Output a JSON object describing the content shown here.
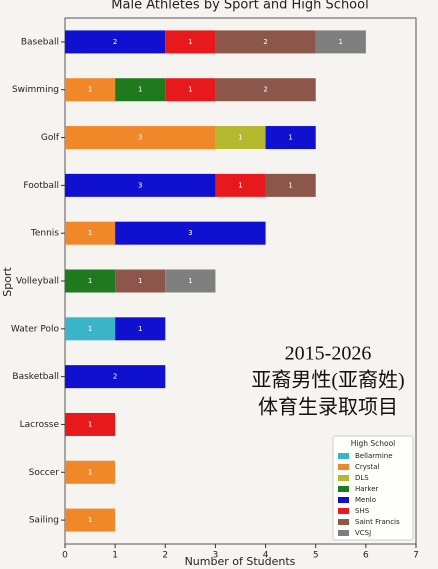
{
  "chart_data": {
    "type": "bar",
    "orientation": "horizontal",
    "stacked": true,
    "title": "Male Athletes by Sport and High School",
    "xlabel": "Number of Students",
    "ylabel": "Sport",
    "categories": [
      "Baseball",
      "Swimming",
      "Golf",
      "Football",
      "Tennis",
      "Volleyball",
      "Water Polo",
      "Basketball",
      "Lacrosse",
      "Soccer",
      "Sailing"
    ],
    "series": [
      {
        "name": "Bellarmine",
        "color": "#3ab5c8",
        "values": [
          null,
          null,
          null,
          null,
          null,
          null,
          1,
          null,
          null,
          null,
          null
        ]
      },
      {
        "name": "Crystal",
        "color": "#f0882a",
        "values": [
          null,
          1,
          3,
          null,
          1,
          null,
          null,
          null,
          null,
          1,
          1
        ]
      },
      {
        "name": "DLS",
        "color": "#b5b92e",
        "values": [
          null,
          null,
          1,
          null,
          null,
          null,
          null,
          null,
          null,
          null,
          null
        ]
      },
      {
        "name": "Harker",
        "color": "#1f7a1f",
        "values": [
          null,
          1,
          null,
          null,
          null,
          1,
          null,
          null,
          null,
          null,
          null
        ]
      },
      {
        "name": "Menlo",
        "color": "#1010d0",
        "values": [
          2,
          null,
          1,
          3,
          3,
          null,
          1,
          2,
          null,
          null,
          null
        ]
      },
      {
        "name": "SHS",
        "color": "#e8191c",
        "values": [
          1,
          1,
          null,
          1,
          null,
          null,
          null,
          null,
          1,
          null,
          null
        ]
      },
      {
        "name": "Saint Francis",
        "color": "#8c564b",
        "values": [
          2,
          2,
          null,
          1,
          null,
          1,
          null,
          null,
          null,
          null,
          null
        ]
      },
      {
        "name": "VCSJ",
        "color": "#7f7f7f",
        "values": [
          1,
          null,
          null,
          null,
          null,
          1,
          null,
          null,
          null,
          null,
          null
        ]
      }
    ],
    "xlim": [
      0,
      7
    ],
    "xticks": [
      0,
      1,
      2,
      3,
      4,
      5,
      6,
      7
    ],
    "legend": {
      "title": "High School",
      "position": "lower right"
    },
    "annotations": [
      "2015-2026",
      "亚裔男性(亚裔姓)",
      "体育生录取项目"
    ]
  }
}
